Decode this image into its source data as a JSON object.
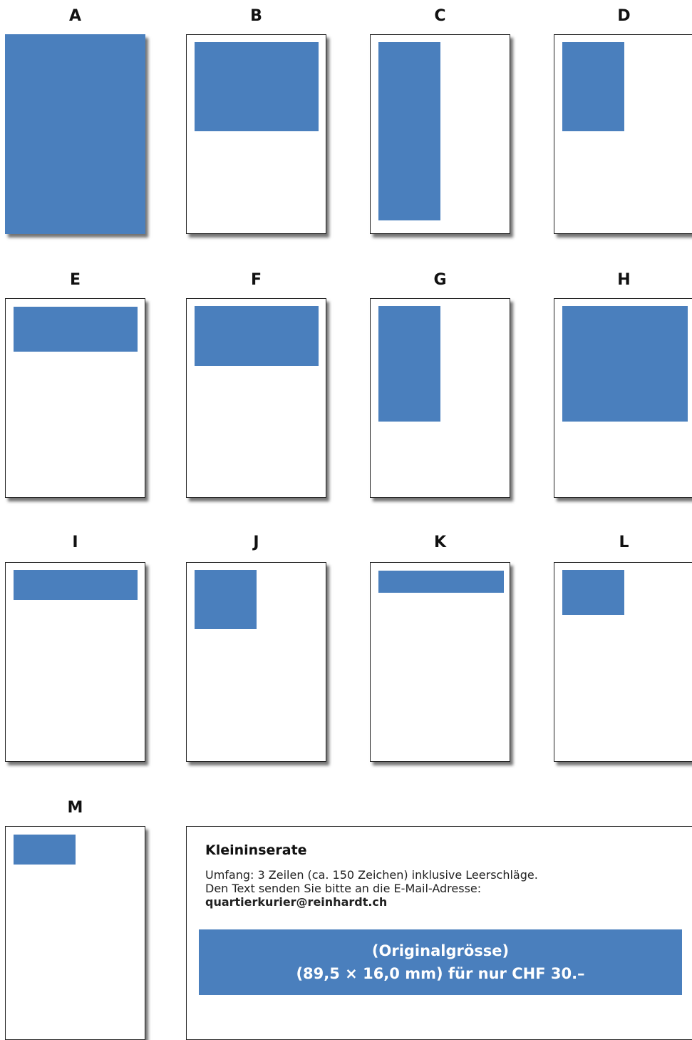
{
  "accent_color": "#4a7fbd",
  "layouts": [
    {
      "id": "A",
      "label": "A"
    },
    {
      "id": "B",
      "label": "B"
    },
    {
      "id": "C",
      "label": "C"
    },
    {
      "id": "D",
      "label": "D"
    },
    {
      "id": "E",
      "label": "E"
    },
    {
      "id": "F",
      "label": "F"
    },
    {
      "id": "G",
      "label": "G"
    },
    {
      "id": "H",
      "label": "H"
    },
    {
      "id": "I",
      "label": "I"
    },
    {
      "id": "J",
      "label": "J"
    },
    {
      "id": "K",
      "label": "K"
    },
    {
      "id": "L",
      "label": "L"
    },
    {
      "id": "M",
      "label": "M"
    }
  ],
  "kleininserate": {
    "title": "Kleininserate",
    "line1": "Umfang: 3 Zeilen (ca. 150 Zeichen) inklusive Leerschläge.",
    "line2": "Den Text senden Sie bitte an die E-Mail-Adresse:",
    "email": "quartierkurier@reinhardt.ch",
    "box_line1": "(Originalgrösse)",
    "box_line2": "(89,5 × 16,0 mm) für nur CHF 30.–"
  }
}
